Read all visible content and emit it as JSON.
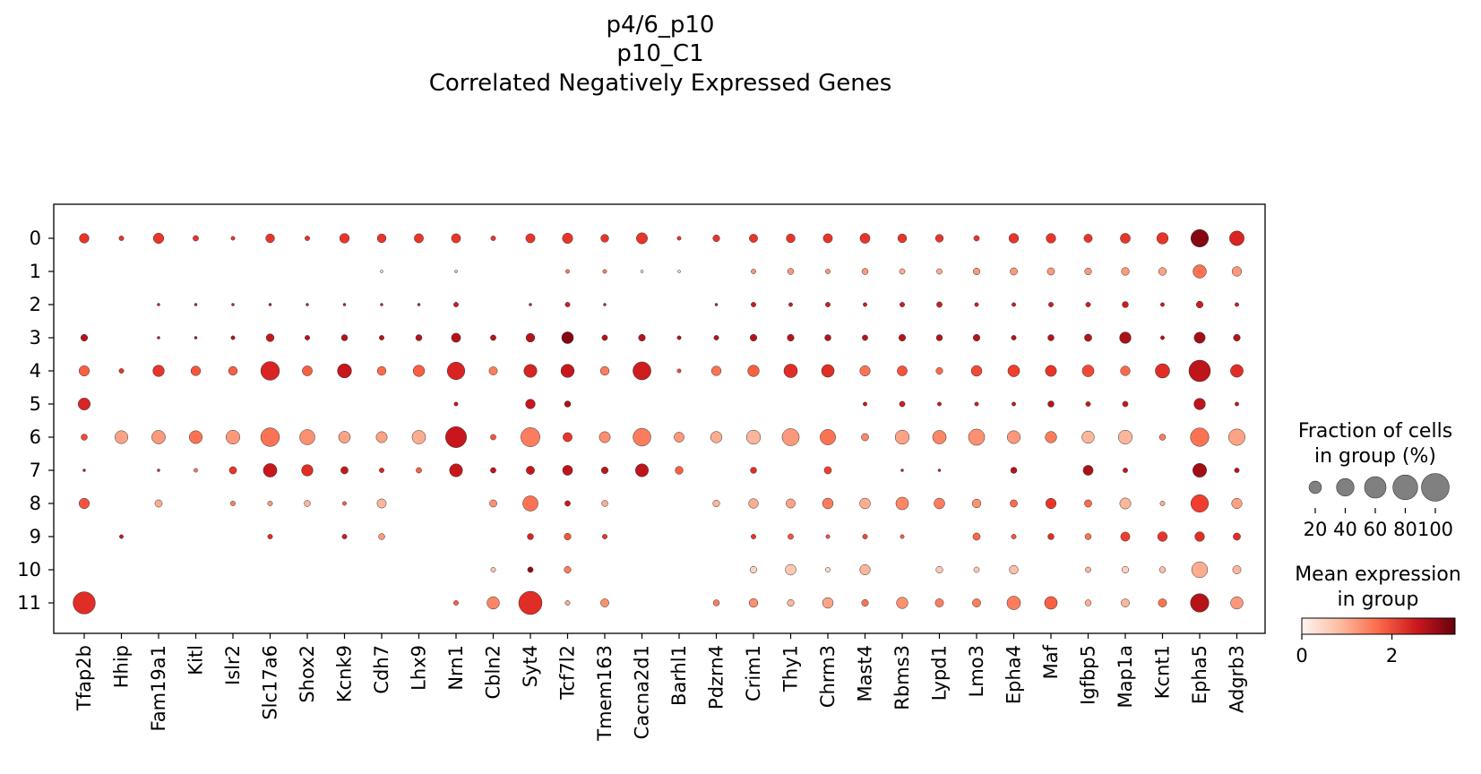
{
  "chart_data": {
    "type": "dotplot",
    "title_lines": [
      "p4/6_p10",
      "p10_C1",
      "Correlated Negatively Expressed Genes"
    ],
    "genes": [
      "Tfap2b",
      "Hhip",
      "Fam19a1",
      "Kitl",
      "Islr2",
      "Slc17a6",
      "Shox2",
      "Kcnk9",
      "Cdh7",
      "Lhx9",
      "Nrn1",
      "Cbln2",
      "Syt4",
      "Tcf7l2",
      "Tmem163",
      "Cacna2d1",
      "Barhl1",
      "Pdzrn4",
      "Crim1",
      "Thy1",
      "Chrm3",
      "Mast4",
      "Rbms3",
      "Lypd1",
      "Lmo3",
      "Epha4",
      "Maf",
      "Igfbp5",
      "Map1a",
      "Kcnt1",
      "Epha5",
      "Adgrb3"
    ],
    "groups": [
      "0",
      "1",
      "2",
      "3",
      "4",
      "5",
      "6",
      "7",
      "8",
      "9",
      "10",
      "11"
    ],
    "fraction_pct": [
      [
        12,
        3,
        14,
        4,
        2,
        10,
        3,
        12,
        10,
        11,
        11,
        3,
        11,
        14,
        8,
        16,
        2,
        6,
        9,
        10,
        11,
        13,
        10,
        8,
        4,
        12,
        12,
        9,
        13,
        17,
        40,
        28
      ],
      [
        0,
        0,
        0,
        0,
        0,
        0,
        0,
        0,
        1,
        0,
        1,
        0,
        0,
        2,
        2,
        1,
        1,
        0,
        3,
        5,
        3,
        5,
        4,
        4,
        6,
        7,
        7,
        6,
        8,
        8,
        23,
        12
      ],
      [
        0,
        0,
        1,
        1,
        1,
        1,
        1,
        1,
        1,
        1,
        3,
        0,
        1,
        3,
        1,
        0,
        0,
        1,
        3,
        2,
        3,
        2,
        3,
        4,
        2,
        2,
        3,
        3,
        5,
        2,
        6,
        2
      ],
      [
        6,
        0,
        1,
        1,
        2,
        8,
        3,
        5,
        3,
        5,
        11,
        4,
        10,
        18,
        4,
        6,
        2,
        3,
        6,
        6,
        5,
        4,
        6,
        5,
        6,
        3,
        5,
        7,
        17,
        2,
        16,
        6
      ],
      [
        14,
        3,
        17,
        12,
        10,
        45,
        13,
        26,
        10,
        17,
        40,
        9,
        22,
        23,
        10,
        42,
        2,
        12,
        17,
        24,
        21,
        14,
        13,
        6,
        15,
        18,
        16,
        18,
        12,
        27,
        60,
        21
      ],
      [
        19,
        0,
        0,
        0,
        0,
        0,
        0,
        0,
        0,
        0,
        2,
        0,
        12,
        5,
        0,
        0,
        0,
        0,
        0,
        0,
        0,
        2,
        4,
        2,
        2,
        2,
        5,
        3,
        4,
        0,
        17,
        2
      ],
      [
        5,
        22,
        24,
        22,
        25,
        45,
        30,
        18,
        16,
        24,
        57,
        4,
        47,
        11,
        16,
        41,
        13,
        17,
        26,
        38,
        31,
        7,
        26,
        24,
        34,
        22,
        17,
        20,
        25,
        5,
        44,
        35
      ],
      [
        1,
        0,
        1,
        2,
        7,
        24,
        17,
        7,
        3,
        4,
        22,
        4,
        9,
        13,
        6,
        22,
        8,
        0,
        5,
        0,
        7,
        0,
        1,
        1,
        0,
        5,
        0,
        13,
        3,
        0,
        25,
        3
      ],
      [
        14,
        0,
        7,
        0,
        3,
        3,
        5,
        2,
        11,
        0,
        0,
        7,
        30,
        4,
        5,
        0,
        0,
        6,
        12,
        11,
        15,
        15,
        21,
        15,
        10,
        7,
        14,
        7,
        16,
        3,
        40,
        14
      ],
      [
        0,
        2,
        0,
        0,
        0,
        3,
        0,
        3,
        5,
        0,
        0,
        0,
        5,
        6,
        3,
        0,
        0,
        0,
        3,
        4,
        2,
        3,
        2,
        0,
        7,
        3,
        5,
        5,
        11,
        12,
        12,
        7
      ],
      [
        0,
        0,
        0,
        0,
        0,
        0,
        0,
        0,
        0,
        0,
        0,
        3,
        4,
        6,
        0,
        0,
        0,
        0,
        6,
        15,
        3,
        14,
        0,
        6,
        4,
        10,
        0,
        4,
        6,
        5,
        33,
        9
      ],
      [
        64,
        0,
        0,
        0,
        0,
        0,
        0,
        0,
        0,
        0,
        3,
        20,
        70,
        3,
        9,
        0,
        0,
        5,
        10,
        6,
        15,
        6,
        17,
        9,
        9,
        24,
        21,
        5,
        9,
        9,
        44,
        20
      ]
    ],
    "mean_expression": [
      [
        2.2,
        2.2,
        2.2,
        2.2,
        2.2,
        2.2,
        2.2,
        2.2,
        2.2,
        2.2,
        2.2,
        2.2,
        2.2,
        2.2,
        2.2,
        2.2,
        2.2,
        2.2,
        2.2,
        2.2,
        2.2,
        2.2,
        2.2,
        2.2,
        2.2,
        2.2,
        2.2,
        2.2,
        2.2,
        2.2,
        3.2,
        2.4
      ],
      [
        0,
        0,
        0,
        0,
        0,
        0,
        0,
        0,
        0.5,
        0,
        0.8,
        0,
        0,
        1.5,
        1.5,
        0.5,
        0.5,
        0,
        1.2,
        1.2,
        1.2,
        1.2,
        1.0,
        1.0,
        1.2,
        1.2,
        1.2,
        1.2,
        1.2,
        1.1,
        1.6,
        1.2
      ],
      [
        0,
        0,
        2.5,
        2.5,
        2.5,
        2.5,
        2.5,
        2.5,
        2.5,
        2.5,
        2.5,
        0,
        2.5,
        2.5,
        2.5,
        0,
        0,
        2.5,
        2.5,
        2.5,
        2.5,
        2.5,
        2.5,
        2.5,
        2.5,
        2.5,
        2.5,
        2.5,
        2.5,
        2.5,
        2.5,
        2.5
      ],
      [
        2.8,
        0,
        2.8,
        2.8,
        2.8,
        2.6,
        2.8,
        2.8,
        2.8,
        2.8,
        2.8,
        2.8,
        2.8,
        3.2,
        2.8,
        2.8,
        2.8,
        2.8,
        2.8,
        2.8,
        2.8,
        2.8,
        2.8,
        2.8,
        2.8,
        2.8,
        2.8,
        2.8,
        2.9,
        2.8,
        3.0,
        2.8
      ],
      [
        1.8,
        2.2,
        2.2,
        1.9,
        1.8,
        2.4,
        1.8,
        2.6,
        1.7,
        1.8,
        2.4,
        1.5,
        2.4,
        2.6,
        1.5,
        2.5,
        2.0,
        1.6,
        1.8,
        2.3,
        2.3,
        1.6,
        1.9,
        1.7,
        2.0,
        2.1,
        2.2,
        2.0,
        1.7,
        2.3,
        2.7,
        2.3
      ],
      [
        2.4,
        0,
        0,
        0,
        0,
        0,
        0,
        0,
        0,
        0,
        2.6,
        0,
        2.6,
        2.9,
        0,
        0,
        0,
        0,
        0,
        0,
        0,
        2.6,
        2.5,
        2.5,
        2.5,
        2.6,
        2.8,
        2.6,
        2.6,
        0,
        2.7,
        2.6
      ],
      [
        2.0,
        1.1,
        1.2,
        1.6,
        1.2,
        1.6,
        1.3,
        1.1,
        1.1,
        1.0,
        2.6,
        1.9,
        1.5,
        2.2,
        1.3,
        1.5,
        1.2,
        1.0,
        0.9,
        1.2,
        1.6,
        1.4,
        1.1,
        1.4,
        1.3,
        1.2,
        1.5,
        0.9,
        0.9,
        1.5,
        1.6,
        1.1
      ],
      [
        2.5,
        0,
        2.4,
        1.5,
        2.2,
        2.6,
        2.3,
        2.6,
        2.4,
        1.8,
        2.6,
        2.7,
        2.6,
        2.7,
        2.7,
        2.7,
        1.8,
        0,
        2.3,
        0,
        2.1,
        0,
        2.5,
        2.5,
        0,
        2.8,
        0,
        2.9,
        2.6,
        0,
        3.0,
        2.7
      ],
      [
        1.9,
        0,
        1.0,
        0,
        1.5,
        1.2,
        0.9,
        1.8,
        0.9,
        0,
        0,
        1.3,
        1.6,
        2.6,
        1.0,
        0,
        0,
        0.9,
        1.0,
        1.1,
        1.5,
        1.0,
        1.4,
        1.5,
        1.3,
        1.7,
        2.2,
        1.7,
        0.9,
        1.0,
        2.1,
        1.1
      ],
      [
        0,
        2.6,
        0,
        0,
        0,
        2.3,
        0,
        2.5,
        1.2,
        0,
        0,
        0,
        2.4,
        1.9,
        2.2,
        0,
        0,
        0,
        2.2,
        1.9,
        1.9,
        2.0,
        1.8,
        0,
        1.7,
        1.9,
        2.3,
        1.6,
        2.1,
        2.2,
        2.3,
        2.3
      ],
      [
        0,
        0,
        0,
        0,
        0,
        0,
        0,
        0,
        0,
        0,
        0,
        0.7,
        3.1,
        1.5,
        0,
        0,
        0,
        0,
        0.6,
        0.7,
        0.5,
        0.9,
        0,
        0.7,
        0.7,
        0.8,
        0,
        0.9,
        0.6,
        0.8,
        1.0,
        0.9
      ],
      [
        2.3,
        0,
        0,
        0,
        0,
        0,
        0,
        0,
        0,
        0,
        1.8,
        1.4,
        2.3,
        1.0,
        1.3,
        0,
        0,
        1.5,
        1.3,
        0.9,
        1.1,
        1.6,
        1.3,
        1.5,
        1.5,
        1.5,
        1.8,
        1.0,
        0.9,
        1.6,
        2.8,
        1.2
      ]
    ],
    "size_legend": {
      "title_lines": [
        "Fraction of cells",
        "in group (%)"
      ],
      "values": [
        20,
        40,
        60,
        80,
        100
      ],
      "tick_labels": [
        "20",
        "40",
        "60",
        "80",
        "100"
      ]
    },
    "color_legend": {
      "title_lines": [
        "Mean expression",
        "in group"
      ],
      "min": 0,
      "max": 3.4,
      "tick_labels": [
        "0",
        "2"
      ],
      "tick_values": [
        0,
        2
      ],
      "colormap": "Reds"
    }
  }
}
